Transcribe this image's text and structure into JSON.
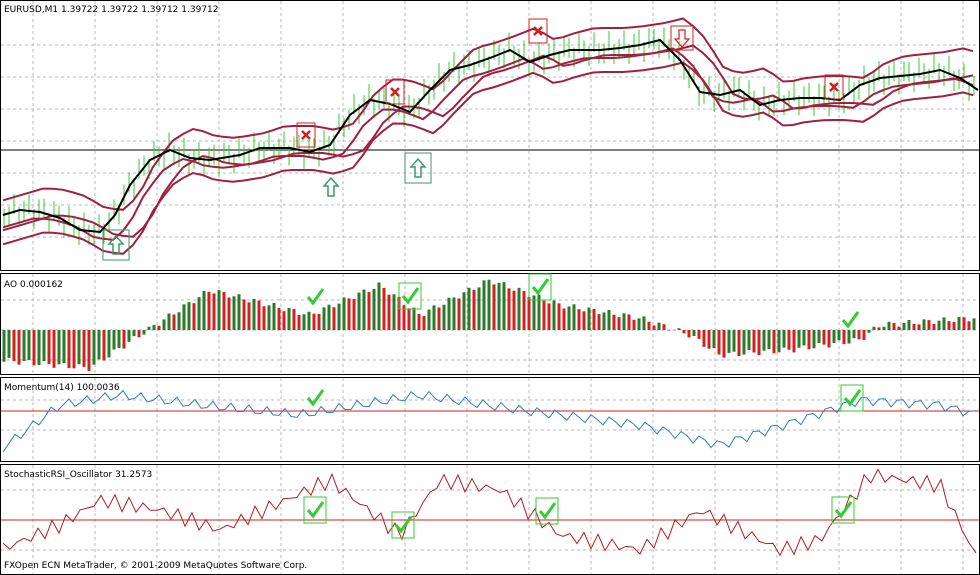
{
  "window": {
    "panels": [
      {
        "label": "EURUSD,M1",
        "values": [
          "1.39722",
          "1.39722",
          "1.39712",
          "1.39712"
        ]
      },
      {
        "label": "AO",
        "values": [
          "0.000162"
        ]
      },
      {
        "label": "Momentum(14)",
        "values": [
          "100.0036"
        ]
      },
      {
        "label": "StochasticRSI_Oscillator",
        "values": [
          "31.2573"
        ]
      }
    ],
    "footer": "FXOpen ECN MetaTrader, © 2001-2009 MetaQuotes Software Corp."
  }
}
